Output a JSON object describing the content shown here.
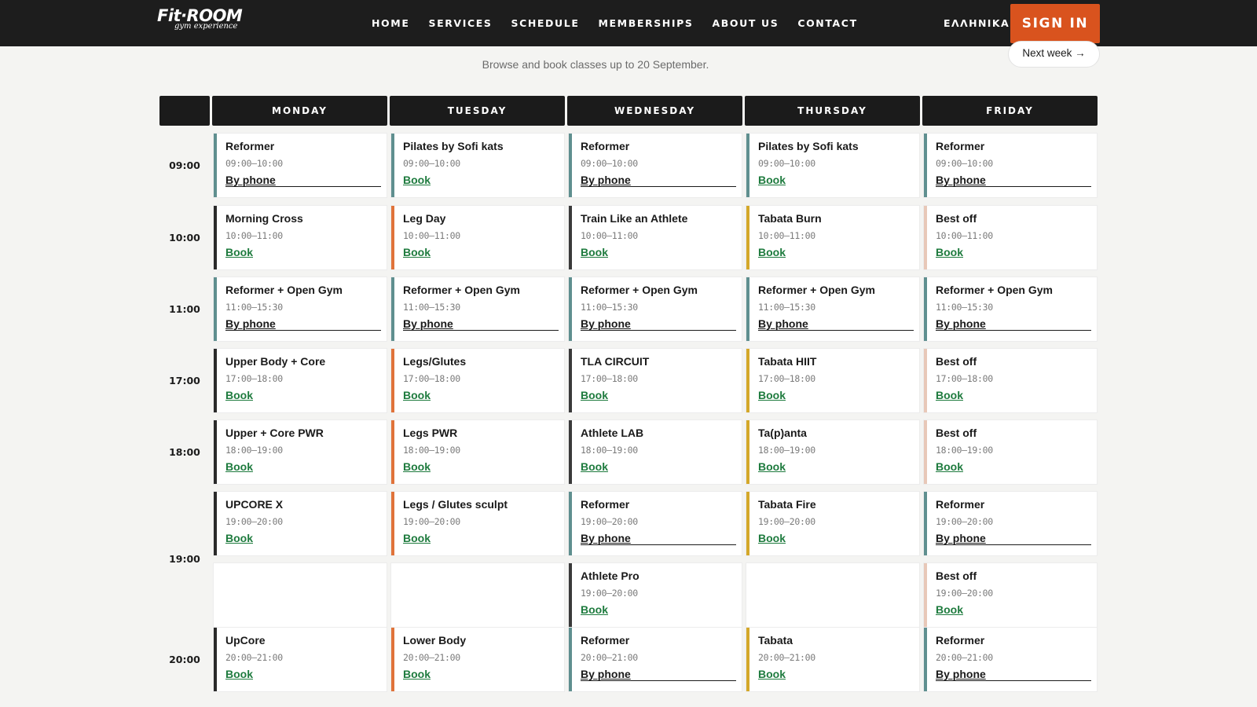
{
  "header": {
    "logo_main": "Fit·ROOM",
    "logo_sub": "gym experience",
    "nav": [
      "HOME",
      "SERVICES",
      "SCHEDULE",
      "MEMBERSHIPS",
      "ABOUT US",
      "CONTACT"
    ],
    "language": "ΕΛΛΗΝΙΚΑ",
    "signin_label": "SIGN IN"
  },
  "schedule": {
    "subtitle": "Browse and book classes up to 20 September.",
    "next_week_label": "Next week →",
    "days": [
      "MONDAY",
      "TUESDAY",
      "WEDNESDAY",
      "THURSDAY",
      "FRIDAY"
    ],
    "slots": [
      "09:00",
      "10:00",
      "11:00",
      "17:00",
      "18:00",
      "19:00",
      "20:00"
    ],
    "colors": {
      "monday": "#2a2a2a",
      "tuesday": "#e0733a",
      "wednesday": "#3a3a3a",
      "thursday": "#d4a82a",
      "friday": "#e8c8b8",
      "reformer": "#5f8f8f"
    },
    "cells": {
      "monday": [
        [
          {
            "title": "Reformer",
            "time": "09:00–10:00",
            "action": "By phone",
            "kind": "phone"
          }
        ],
        [
          {
            "title": "Morning Cross",
            "time": "10:00–11:00",
            "action": "Book",
            "kind": "book"
          }
        ],
        [
          {
            "title": "Reformer + Open Gym",
            "time": "11:00–15:30",
            "action": "By phone",
            "kind": "phone"
          }
        ],
        [
          {
            "title": "Upper Body + Core",
            "time": "17:00–18:00",
            "action": "Book",
            "kind": "book"
          }
        ],
        [
          {
            "title": "Upper + Core PWR",
            "time": "18:00–19:00",
            "action": "Book",
            "kind": "book"
          }
        ],
        [
          {
            "title": "UPCORE X",
            "time": "19:00–20:00",
            "action": "Book",
            "kind": "book"
          }
        ],
        [
          {
            "title": "UpCore",
            "time": "20:00–21:00",
            "action": "Book",
            "kind": "book"
          }
        ]
      ],
      "tuesday": [
        [
          {
            "title": "Pilates by Sofi kats",
            "time": "09:00–10:00",
            "action": "Book",
            "kind": "book"
          }
        ],
        [
          {
            "title": "Leg Day",
            "time": "10:00–11:00",
            "action": "Book",
            "kind": "book"
          }
        ],
        [
          {
            "title": "Reformer + Open Gym",
            "time": "11:00–15:30",
            "action": "By phone",
            "kind": "phone"
          }
        ],
        [
          {
            "title": "Legs/Glutes",
            "time": "17:00–18:00",
            "action": "Book",
            "kind": "book"
          }
        ],
        [
          {
            "title": "Legs PWR",
            "time": "18:00–19:00",
            "action": "Book",
            "kind": "book"
          }
        ],
        [
          {
            "title": "Legs / Glutes sculpt",
            "time": "19:00–20:00",
            "action": "Book",
            "kind": "book"
          }
        ],
        [
          {
            "title": "Lower Body",
            "time": "20:00–21:00",
            "action": "Book",
            "kind": "book"
          }
        ]
      ],
      "wednesday": [
        [
          {
            "title": "Reformer",
            "time": "09:00–10:00",
            "action": "By phone",
            "kind": "phone"
          }
        ],
        [
          {
            "title": "Train Like an Athlete",
            "time": "10:00–11:00",
            "action": "Book",
            "kind": "book"
          }
        ],
        [
          {
            "title": "Reformer + Open Gym",
            "time": "11:00–15:30",
            "action": "By phone",
            "kind": "phone"
          }
        ],
        [
          {
            "title": "TLA CIRCUIT",
            "time": "17:00–18:00",
            "action": "Book",
            "kind": "book"
          }
        ],
        [
          {
            "title": "Athlete LAB",
            "time": "18:00–19:00",
            "action": "Book",
            "kind": "book"
          }
        ],
        [
          {
            "title": "Reformer",
            "time": "19:00–20:00",
            "action": "By phone",
            "kind": "phone"
          },
          {
            "title": "Athlete Pro",
            "time": "19:00–20:00",
            "action": "Book",
            "kind": "book"
          }
        ],
        [
          {
            "title": "Reformer",
            "time": "20:00–21:00",
            "action": "By phone",
            "kind": "phone"
          }
        ]
      ],
      "thursday": [
        [
          {
            "title": "Pilates by Sofi kats",
            "time": "09:00–10:00",
            "action": "Book",
            "kind": "book"
          }
        ],
        [
          {
            "title": "Tabata Burn",
            "time": "10:00–11:00",
            "action": "Book",
            "kind": "book"
          }
        ],
        [
          {
            "title": "Reformer + Open Gym",
            "time": "11:00–15:30",
            "action": "By phone",
            "kind": "phone"
          }
        ],
        [
          {
            "title": "Tabata HIIT",
            "time": "17:00–18:00",
            "action": "Book",
            "kind": "book"
          }
        ],
        [
          {
            "title": "Ta(p)anta",
            "time": "18:00–19:00",
            "action": "Book",
            "kind": "book"
          }
        ],
        [
          {
            "title": "Tabata Fire",
            "time": "19:00–20:00",
            "action": "Book",
            "kind": "book"
          }
        ],
        [
          {
            "title": "Tabata",
            "time": "20:00–21:00",
            "action": "Book",
            "kind": "book"
          }
        ]
      ],
      "friday": [
        [
          {
            "title": "Reformer",
            "time": "09:00–10:00",
            "action": "By phone",
            "kind": "phone"
          }
        ],
        [
          {
            "title": "Best off",
            "time": "10:00–11:00",
            "action": "Book",
            "kind": "book"
          }
        ],
        [
          {
            "title": "Reformer + Open Gym",
            "time": "11:00–15:30",
            "action": "By phone",
            "kind": "phone"
          }
        ],
        [
          {
            "title": "Best off",
            "time": "17:00–18:00",
            "action": "Book",
            "kind": "book"
          }
        ],
        [
          {
            "title": "Best off",
            "time": "18:00–19:00",
            "action": "Book",
            "kind": "book"
          }
        ],
        [
          {
            "title": "Reformer",
            "time": "19:00–20:00",
            "action": "By phone",
            "kind": "phone"
          },
          {
            "title": "Best off",
            "time": "19:00–20:00",
            "action": "Book",
            "kind": "book"
          }
        ],
        [
          {
            "title": "Reformer",
            "time": "20:00–21:00",
            "action": "By phone",
            "kind": "phone"
          }
        ]
      ]
    }
  }
}
